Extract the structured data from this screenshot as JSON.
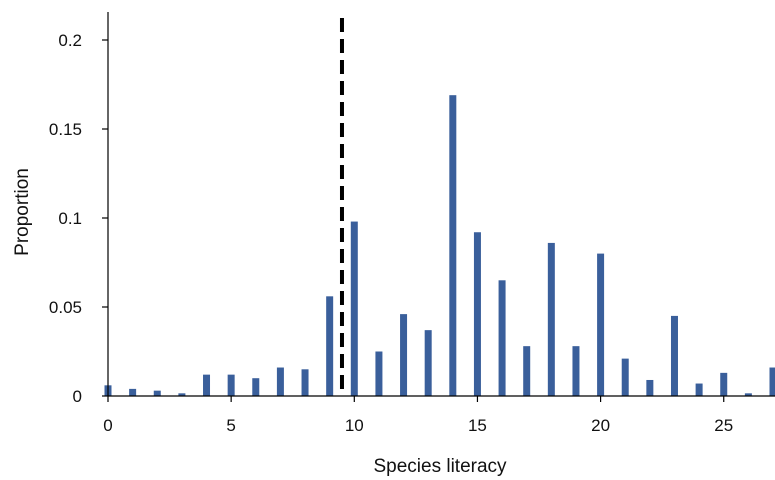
{
  "chart_data": {
    "type": "bar",
    "title": "",
    "xlabel": "Species literacy",
    "ylabel": "Proportion",
    "xlim": [
      0,
      27
    ],
    "ylim": [
      0,
      0.2
    ],
    "x_ticks": [
      "0",
      "5",
      "10",
      "15",
      "20",
      "25"
    ],
    "y_ticks": [
      "0",
      "0.05",
      "0.1",
      "0.15",
      "0.2"
    ],
    "grid": false,
    "legend": "none",
    "bar_color": "#3a5f9b",
    "x": [
      0,
      1,
      2,
      3,
      4,
      5,
      6,
      7,
      8,
      9,
      10,
      11,
      12,
      13,
      14,
      15,
      16,
      17,
      18,
      19,
      20,
      21,
      22,
      23,
      24,
      25,
      26,
      27
    ],
    "values": [
      0.006,
      0.004,
      0.003,
      0.0015,
      0.012,
      0.012,
      0.01,
      0.016,
      0.015,
      0.056,
      0.098,
      0.025,
      0.046,
      0.037,
      0.169,
      0.092,
      0.065,
      0.028,
      0.086,
      0.028,
      0.08,
      0.021,
      0.009,
      0.045,
      0.007,
      0.013,
      0.0015,
      0.016
    ],
    "reference_line": {
      "x": 9.5,
      "style": "dashed",
      "color": "#000000"
    }
  }
}
